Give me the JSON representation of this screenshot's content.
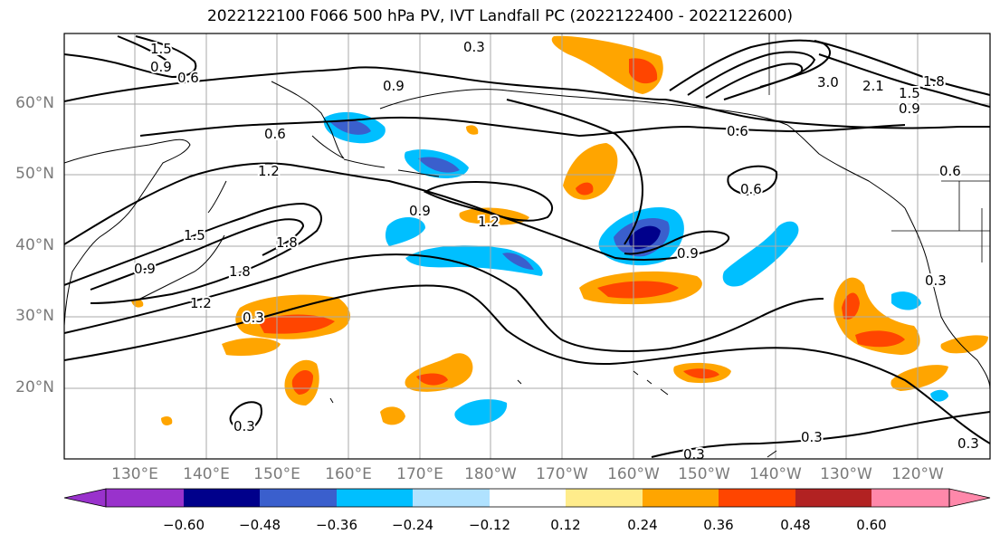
{
  "title": "2022122100 F066 500 hPa PV, IVT Landfall PC (2022122400 - 2022122600)",
  "lat_labels": [
    "60°N",
    "50°N",
    "40°N",
    "30°N",
    "20°N"
  ],
  "lon_labels": [
    "130°E",
    "140°E",
    "150°E",
    "160°E",
    "170°E",
    "180°W",
    "170°W",
    "160°W",
    "150°W",
    "140°W",
    "130°W",
    "120°W"
  ],
  "contour_labels": [
    "1.5",
    "0.9",
    "0.6",
    "0.3",
    "0.9",
    "0.6",
    "1.2",
    "1.5",
    "1.8",
    "1.8",
    "1.2",
    "0.9",
    "0.3",
    "0.9",
    "1.2",
    "0.9",
    "0.6",
    "0.6",
    "3.0",
    "2.1",
    "1.8",
    "1.5",
    "0.9",
    "0.3",
    "0.3",
    "0.3",
    "0.3",
    "0.9",
    "0.6",
    "0.3"
  ],
  "colorbar": {
    "ticks": [
      "−0.60",
      "−0.48",
      "−0.36",
      "−0.24",
      "−0.12",
      "0.12",
      "0.24",
      "0.36",
      "0.48",
      "0.60"
    ],
    "colors": [
      "#9932cc",
      "#00008b",
      "#3a5fcd",
      "#00bfff",
      "#b0e2ff",
      "#ffffff",
      "#ffec8b",
      "#ffa500",
      "#ff4500",
      "#b22222",
      "#ff88aa"
    ]
  },
  "colors": {
    "land_outline": "#000000",
    "grid": "#aaaaaa",
    "contour": "#000000"
  }
}
